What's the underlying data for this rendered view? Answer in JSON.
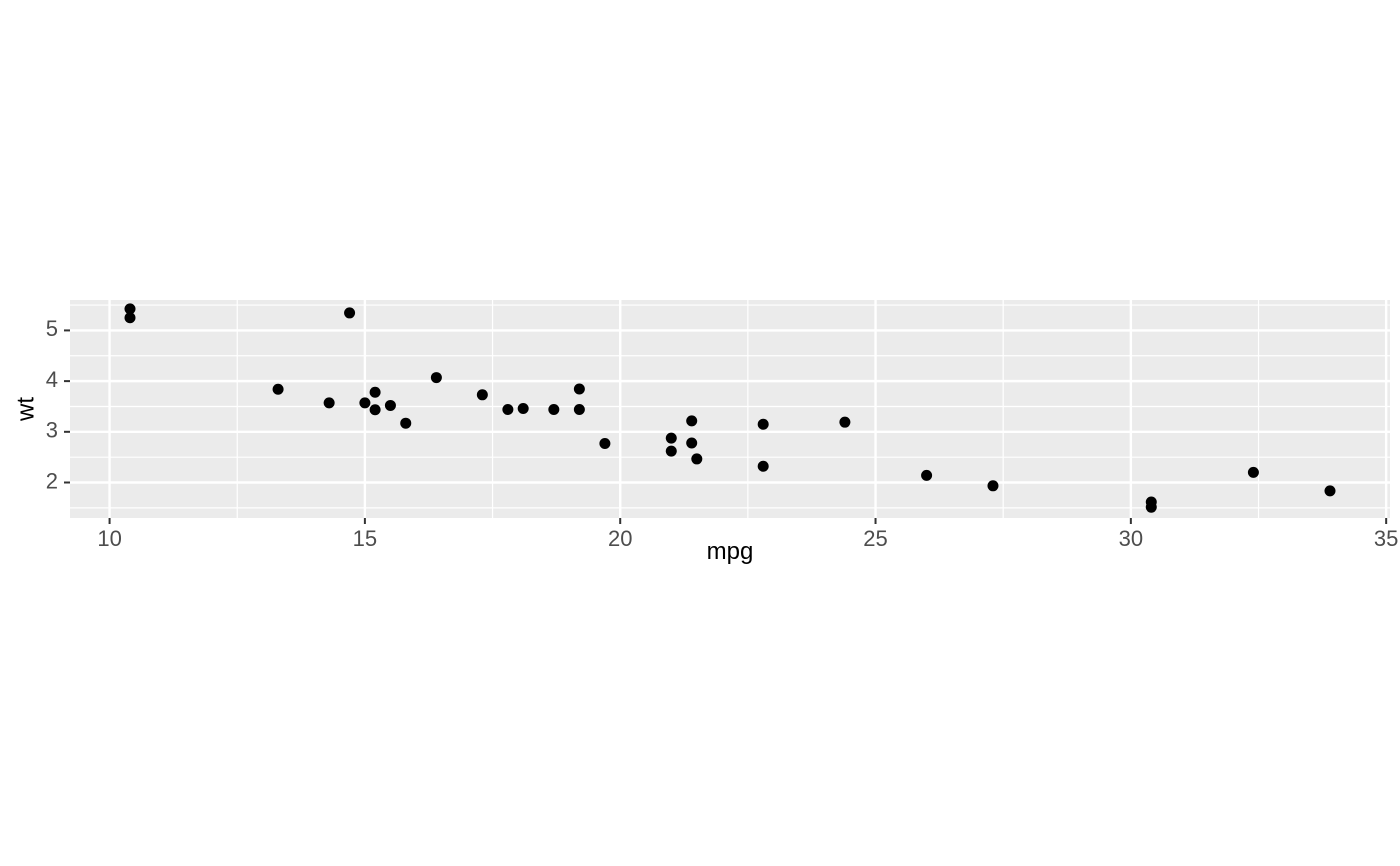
{
  "chart_data": {
    "type": "scatter",
    "xlabel": "mpg",
    "ylabel": "wt",
    "xlim": [
      9.225,
      35.075
    ],
    "ylim": [
      1.3,
      5.6
    ],
    "x_ticks": [
      10,
      15,
      20,
      25,
      30,
      35
    ],
    "x_tick_labels": [
      "10",
      "15",
      "20",
      "25",
      "30",
      "35"
    ],
    "x_minor_ticks": [
      12.5,
      17.5,
      22.5,
      27.5,
      32.5
    ],
    "y_ticks": [
      2,
      3,
      4,
      5
    ],
    "y_tick_labels": [
      "2",
      "3",
      "4",
      "5"
    ],
    "y_minor_ticks": [
      1.5,
      2.5,
      3.5,
      4.5,
      5.5
    ],
    "grid": true,
    "legend": "none",
    "colors": {
      "panel": "#ebebeb",
      "grid": "#ffffff",
      "point": "#000000",
      "text": "#4d4d4d",
      "tick": "#333333"
    },
    "points": [
      {
        "x": 21.0,
        "y": 2.62
      },
      {
        "x": 21.0,
        "y": 2.875
      },
      {
        "x": 22.8,
        "y": 2.32
      },
      {
        "x": 21.4,
        "y": 3.215
      },
      {
        "x": 18.7,
        "y": 3.44
      },
      {
        "x": 18.1,
        "y": 3.46
      },
      {
        "x": 14.3,
        "y": 3.57
      },
      {
        "x": 24.4,
        "y": 3.19
      },
      {
        "x": 22.8,
        "y": 3.15
      },
      {
        "x": 19.2,
        "y": 3.44
      },
      {
        "x": 17.8,
        "y": 3.44
      },
      {
        "x": 16.4,
        "y": 4.07
      },
      {
        "x": 17.3,
        "y": 3.73
      },
      {
        "x": 15.2,
        "y": 3.78
      },
      {
        "x": 10.4,
        "y": 5.25
      },
      {
        "x": 10.4,
        "y": 5.424
      },
      {
        "x": 14.7,
        "y": 5.345
      },
      {
        "x": 32.4,
        "y": 2.2
      },
      {
        "x": 30.4,
        "y": 1.615
      },
      {
        "x": 33.9,
        "y": 1.835
      },
      {
        "x": 21.5,
        "y": 2.465
      },
      {
        "x": 15.5,
        "y": 3.52
      },
      {
        "x": 15.2,
        "y": 3.435
      },
      {
        "x": 13.3,
        "y": 3.84
      },
      {
        "x": 19.2,
        "y": 3.845
      },
      {
        "x": 27.3,
        "y": 1.935
      },
      {
        "x": 26.0,
        "y": 2.14
      },
      {
        "x": 30.4,
        "y": 1.513
      },
      {
        "x": 15.8,
        "y": 3.17
      },
      {
        "x": 19.7,
        "y": 2.77
      },
      {
        "x": 15.0,
        "y": 3.57
      },
      {
        "x": 21.4,
        "y": 2.78
      }
    ]
  }
}
